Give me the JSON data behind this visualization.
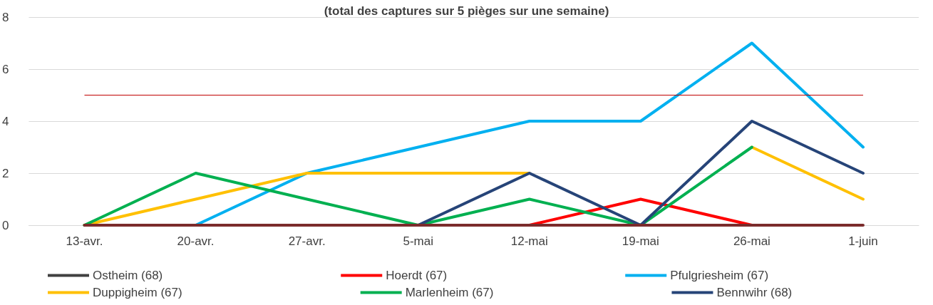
{
  "chart_data": {
    "type": "line",
    "title": "(total des captures sur 5 pièges sur une semaine)",
    "categories": [
      "13-avr.",
      "20-avr.",
      "27-avr.",
      "5-mai",
      "12-mai",
      "19-mai",
      "26-mai",
      "1-juin"
    ],
    "series": [
      {
        "name": "Ostheim (68)",
        "color": "#404040",
        "values": [
          null,
          null,
          null,
          null,
          null,
          null,
          null,
          null
        ]
      },
      {
        "name": "Hoerdt (67)",
        "color": "#ff0000",
        "values": [
          null,
          null,
          null,
          null,
          0,
          1,
          0,
          null
        ]
      },
      {
        "name": "Pfulgriesheim (67)",
        "color": "#00b0f0",
        "values": [
          0,
          0,
          2,
          3,
          4,
          4,
          7,
          3
        ]
      },
      {
        "name": "Duppigheim (67)",
        "color": "#ffc000",
        "values": [
          0,
          1,
          2,
          2,
          2,
          null,
          3,
          1
        ]
      },
      {
        "name": "Marlenheim (67)",
        "color": "#00b050",
        "values": [
          0,
          2,
          1,
          0,
          1,
          0,
          3,
          null
        ]
      },
      {
        "name": "Bennwihr (68)",
        "color": "#264478",
        "values": [
          null,
          null,
          null,
          0,
          2,
          0,
          4,
          2
        ]
      },
      {
        "color": "#7b2c2c",
        "values": [
          0,
          0,
          0,
          0,
          0,
          0,
          0,
          0
        ]
      }
    ],
    "ylim": [
      0,
      8
    ],
    "yticks": [
      0,
      2,
      4,
      6,
      8
    ],
    "grid": "y",
    "legend": "bottom",
    "marker": "none",
    "line_style": "solid",
    "ref_lines": [
      {
        "axis": "y",
        "value": 5,
        "color": "#c00000"
      }
    ]
  }
}
